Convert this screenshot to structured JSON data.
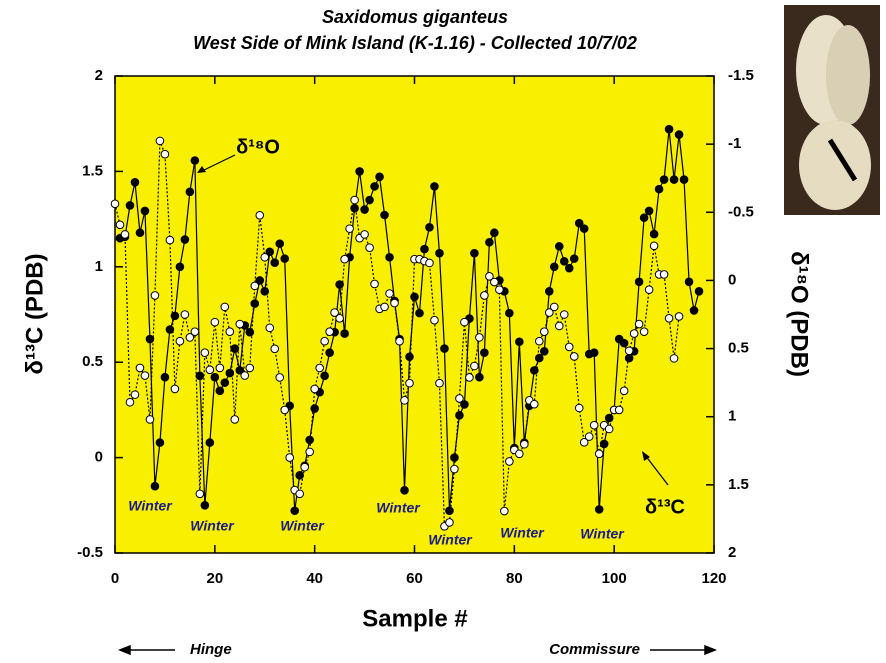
{
  "chart_data": {
    "type": "line",
    "title": "Saxidomus giganteus",
    "subtitle": "West Side of Mink Island (K-1.16) - Collected 10/7/02",
    "xlabel": "Sample #",
    "ylabel": "δ¹³C (PDB)",
    "y2label": "δ¹⁸O (PDB)",
    "xlim": [
      0,
      120
    ],
    "xticks": [
      0,
      20,
      40,
      60,
      80,
      100,
      120
    ],
    "ylim": [
      -0.5,
      2
    ],
    "yticks": [
      -0.5,
      0,
      0.5,
      1,
      1.5,
      2
    ],
    "y2lim": [
      2,
      -1.5
    ],
    "y2ticks": [
      -1.5,
      -1,
      -0.5,
      0,
      0.5,
      1,
      1.5,
      2
    ],
    "background": "#f8f000",
    "series": [
      {
        "name": "δ¹⁸O",
        "axis": "y2",
        "color": "#000000",
        "marker": "filled",
        "dash": "solid",
        "x": [
          1,
          2,
          3,
          4,
          5,
          6,
          7,
          8,
          9,
          10,
          11,
          12,
          13,
          14,
          15,
          16,
          17,
          18,
          19,
          20,
          21,
          22,
          23,
          24,
          25,
          26,
          27,
          28,
          29,
          30,
          31,
          32,
          33,
          34,
          35,
          36,
          37,
          38,
          39,
          40,
          41,
          42,
          43,
          44,
          45,
          46,
          47,
          48,
          49,
          50,
          51,
          52,
          53,
          54,
          55,
          56,
          57,
          58,
          59,
          60,
          61,
          62,
          63,
          64,
          65,
          66,
          67,
          68,
          69,
          70,
          71,
          72,
          73,
          74,
          75,
          76,
          77,
          78,
          79,
          80,
          81,
          82,
          83,
          84,
          85,
          86,
          87,
          88,
          89,
          90,
          91,
          92,
          93,
          94,
          95,
          96,
          97,
          98,
          99,
          100,
          101,
          102,
          103,
          104,
          105,
          106,
          107,
          108,
          109,
          110,
          111,
          112,
          113,
          114,
          115,
          116,
          117
        ],
        "values": [
          -0.31,
          -0.32,
          -0.55,
          -0.72,
          -0.35,
          -0.51,
          0.43,
          1.51,
          1.19,
          0.71,
          0.36,
          0.26,
          -0.1,
          -0.3,
          -0.65,
          -0.88,
          0.7,
          1.65,
          1.19,
          0.71,
          0.81,
          0.75,
          0.68,
          0.5,
          0.66,
          0.33,
          0.38,
          0.17,
          0.0,
          0.08,
          -0.21,
          -0.13,
          -0.27,
          -0.16,
          0.92,
          1.69,
          1.43,
          1.36,
          1.17,
          0.94,
          0.82,
          0.7,
          0.53,
          0.38,
          0.03,
          0.39,
          -0.17,
          -0.53,
          -0.8,
          -0.52,
          -0.59,
          -0.69,
          -0.76,
          -0.48,
          -0.17,
          0.15,
          0.43,
          1.54,
          0.56,
          0.12,
          0.24,
          -0.23,
          -0.39,
          -0.69,
          -0.2,
          0.5,
          1.69,
          1.3,
          0.99,
          0.91,
          0.28,
          -0.2,
          0.71,
          0.53,
          -0.28,
          -0.35,
          0.0,
          0.08,
          0.24,
          1.23,
          0.45,
          1.19,
          0.92,
          0.66,
          0.57,
          0.52,
          0.08,
          -0.1,
          -0.25,
          -0.14,
          -0.09,
          -0.16,
          -0.42,
          -0.38,
          0.54,
          0.53,
          1.68,
          1.2,
          1.01,
          0.95,
          0.43,
          0.46,
          0.57,
          0.52,
          0.01,
          -0.46,
          -0.51,
          -0.34,
          -0.67,
          -0.74,
          -1.11,
          -0.74,
          -1.07,
          -0.74,
          0.01,
          0.22,
          0.08
        ]
      },
      {
        "name": "δ¹³C",
        "axis": "y",
        "color": "#000000",
        "marker": "open",
        "dash": "dotted",
        "x": [
          0,
          1,
          2,
          3,
          4,
          5,
          6,
          7,
          8,
          9,
          10,
          11,
          12,
          13,
          14,
          15,
          16,
          17,
          18,
          19,
          20,
          21,
          22,
          23,
          24,
          25,
          26,
          27,
          28,
          29,
          30,
          31,
          32,
          33,
          34,
          35,
          36,
          37,
          38,
          39,
          40,
          41,
          42,
          43,
          44,
          45,
          46,
          47,
          48,
          49,
          50,
          51,
          52,
          53,
          54,
          55,
          56,
          57,
          58,
          59,
          60,
          61,
          62,
          63,
          64,
          65,
          66,
          67,
          68,
          69,
          70,
          71,
          72,
          73,
          74,
          75,
          76,
          77,
          78,
          79,
          80,
          81,
          82,
          83,
          84,
          85,
          86,
          87,
          88,
          89,
          90,
          91,
          92,
          93,
          94,
          95,
          96,
          97,
          98,
          99,
          100,
          101,
          102,
          103,
          104,
          105,
          106,
          107,
          108,
          109,
          110,
          111,
          112,
          113
        ],
        "values": [
          1.33,
          1.22,
          1.17,
          0.29,
          0.33,
          0.47,
          0.43,
          0.2,
          0.85,
          1.66,
          1.59,
          1.14,
          0.36,
          0.61,
          0.75,
          0.63,
          0.66,
          -0.19,
          0.55,
          0.46,
          0.71,
          0.47,
          0.79,
          0.66,
          0.2,
          0.7,
          0.43,
          0.47,
          0.9,
          1.27,
          1.05,
          0.68,
          0.57,
          0.42,
          0.25,
          0.0,
          -0.17,
          -0.19,
          -0.05,
          0.03,
          0.36,
          0.47,
          0.61,
          0.66,
          0.76,
          0.73,
          1.04,
          1.2,
          1.35,
          1.15,
          1.17,
          1.1,
          0.91,
          0.78,
          0.79,
          0.86,
          0.81,
          0.61,
          0.3,
          0.39,
          1.04,
          1.04,
          1.03,
          1.02,
          0.72,
          0.39,
          -0.36,
          -0.34,
          -0.06,
          0.31,
          0.71,
          0.42,
          0.48,
          0.63,
          0.85,
          0.95,
          0.92,
          0.88,
          -0.28,
          -0.02,
          0.04,
          0.02,
          0.07,
          0.3,
          0.28,
          0.61,
          0.66,
          0.76,
          0.79,
          0.69,
          0.75,
          0.58,
          0.53,
          0.26,
          0.08,
          0.11,
          0.17,
          0.02,
          0.17,
          0.15,
          0.25,
          0.25,
          0.35,
          0.56,
          0.65,
          0.7,
          0.66,
          0.88,
          1.11,
          0.96,
          0.96,
          0.73,
          0.52,
          0.74
        ]
      }
    ],
    "annotations": [
      "Winter",
      "Winter",
      "Winter",
      "Winter",
      "Winter",
      "Winter",
      "Winter"
    ],
    "series_labels": [
      "δ¹⁸O",
      "δ¹³C"
    ],
    "footer": {
      "left": "Hinge",
      "right": "Commissure"
    }
  }
}
